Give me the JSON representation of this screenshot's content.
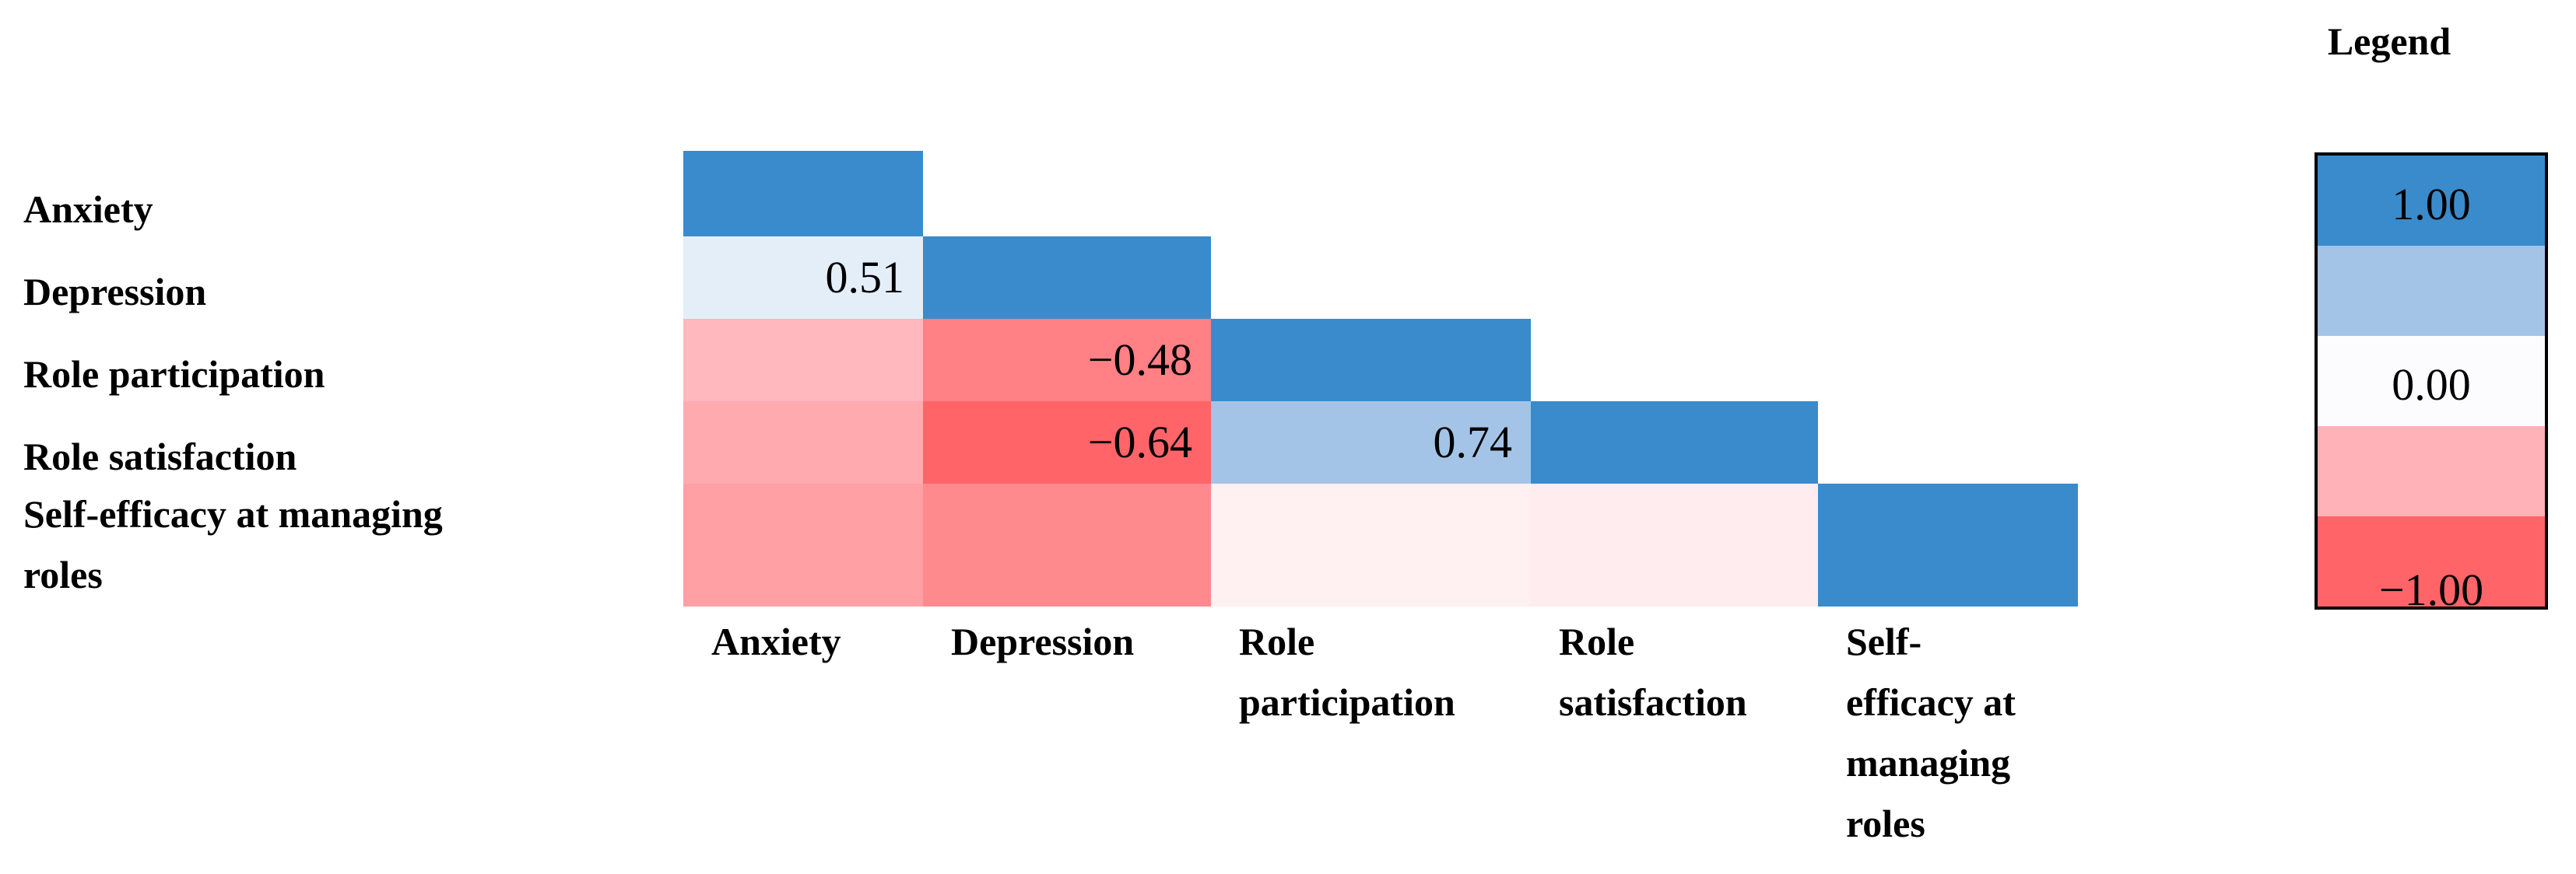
{
  "chart_data": {
    "type": "heatmap",
    "variables": [
      "Anxiety",
      "Depression",
      "Role participation",
      "Role satisfaction",
      "Self-efficacy at managing roles"
    ],
    "row_labels": [
      "Anxiety",
      "Depression",
      "Role participation",
      "Role satisfaction",
      "Self-efficacy at managing\nroles"
    ],
    "col_labels": [
      "Anxiety",
      "Depression",
      "Role\nparticipation",
      "Role\nsatisfaction",
      "Self-\nefficacy at\nmanaging\nroles"
    ],
    "cells": [
      {
        "row": 0,
        "col": 0,
        "color": "#3a8bcb",
        "label": ""
      },
      {
        "row": 1,
        "col": 0,
        "color": "#e4eef9",
        "label": "0.51"
      },
      {
        "row": 1,
        "col": 1,
        "color": "#3a8bcb",
        "label": ""
      },
      {
        "row": 2,
        "col": 0,
        "color": "#ffb8bd",
        "label": ""
      },
      {
        "row": 2,
        "col": 1,
        "color": "#ff8085",
        "label": "−0.48"
      },
      {
        "row": 2,
        "col": 2,
        "color": "#3a8bcb",
        "label": ""
      },
      {
        "row": 3,
        "col": 0,
        "color": "#ffaaaf",
        "label": ""
      },
      {
        "row": 3,
        "col": 1,
        "color": "#ff6469",
        "label": "−0.64"
      },
      {
        "row": 3,
        "col": 2,
        "color": "#a3c4e6",
        "label": "0.74"
      },
      {
        "row": 3,
        "col": 3,
        "color": "#3a8bcb",
        "label": ""
      },
      {
        "row": 4,
        "col": 0,
        "color": "#ffa0a5",
        "label": ""
      },
      {
        "row": 4,
        "col": 1,
        "color": "#ff8a8e",
        "label": ""
      },
      {
        "row": 4,
        "col": 2,
        "color": "#fff0f2",
        "label": ""
      },
      {
        "row": 4,
        "col": 3,
        "color": "#ffecee",
        "label": ""
      },
      {
        "row": 4,
        "col": 4,
        "color": "#3a8bcb",
        "label": ""
      }
    ],
    "legend": {
      "title": "Legend",
      "bands": [
        {
          "color": "#3a8bcb",
          "label": "1.00"
        },
        {
          "color": "#a3c4e6",
          "label": ""
        },
        {
          "color": "#fcfcff",
          "label": "0.00"
        },
        {
          "color": "#ffb3b8",
          "label": ""
        },
        {
          "color": "#ff6469",
          "label": "−1.00"
        }
      ]
    }
  }
}
